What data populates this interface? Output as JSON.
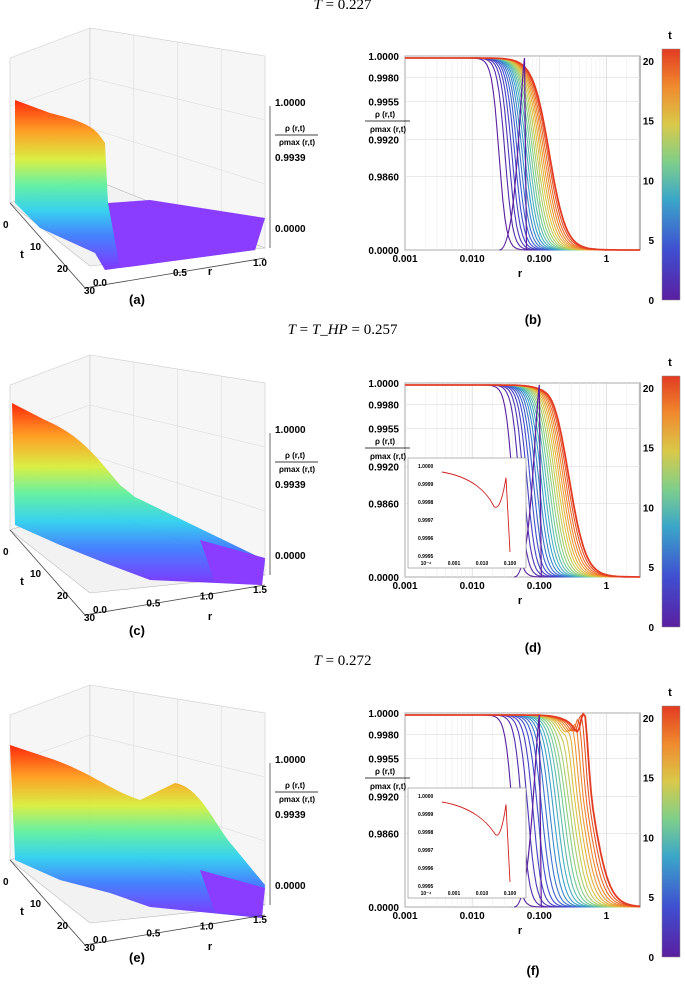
{
  "rows": [
    {
      "title_lhs": "T",
      "title_mid": "",
      "title_value": "0.227",
      "label_3d": "(a)",
      "label_2d": "(b)",
      "surface": {
        "type": "surface3d",
        "t_axis": {
          "label": "t",
          "ticks": [
            "0",
            "10",
            "20",
            "30"
          ]
        },
        "r_axis": {
          "label": "r",
          "ticks": [
            "0.0",
            "0.5",
            "1.0"
          ],
          "max": 1.0
        },
        "z_ticks": [
          "1.0000",
          "0.9939",
          "0.0000"
        ],
        "z_label_num": "ρ (r,t)",
        "z_label_den": "ρmax (r,t)",
        "shape": "single-front"
      },
      "profile": {
        "type": "line",
        "x_ticks": [
          "0.001",
          "0.010",
          "0.100",
          "1"
        ],
        "y_ticks": [
          "1.0000",
          "0.9980",
          "0.9955",
          "0.9920",
          "0.9860",
          "0.0000"
        ],
        "xlabel": "r",
        "ylabel_num": "ρ (r,t)",
        "ylabel_den": "ρmax (r,t)",
        "front_log_r_start": -1.6,
        "front_log_r_end": -0.85,
        "bump": false,
        "secondary": false,
        "inset": null,
        "colorbar": {
          "label": "t",
          "ticks": [
            "20",
            "15",
            "10",
            "5",
            "0"
          ],
          "min": 0,
          "max": 21
        }
      }
    },
    {
      "title_lhs": "T",
      "title_mid": "T_HP",
      "title_value": "0.257",
      "label_3d": "(c)",
      "label_2d": "(d)",
      "surface": {
        "type": "surface3d",
        "t_axis": {
          "label": "t",
          "ticks": [
            "0",
            "10",
            "20",
            "30"
          ]
        },
        "r_axis": {
          "label": "r",
          "ticks": [
            "0.0",
            "0.5",
            "1.0",
            "1.5"
          ],
          "max": 1.5
        },
        "z_ticks": [
          "1.0000",
          "0.9939",
          "0.0000"
        ],
        "z_label_num": "ρ (r,t)",
        "z_label_den": "ρmax (r,t)",
        "shape": "double-front"
      },
      "profile": {
        "type": "line",
        "x_ticks": [
          "0.001",
          "0.010",
          "0.100",
          "1"
        ],
        "y_ticks": [
          "1.0000",
          "0.9980",
          "0.9955",
          "0.9920",
          "0.9860",
          "0.0000"
        ],
        "xlabel": "r",
        "ylabel_num": "ρ (r,t)",
        "ylabel_den": "ρmax (r,t)",
        "front_log_r_start": -1.4,
        "front_log_r_end": -0.55,
        "bump": true,
        "secondary": true,
        "inset": {
          "y_ticks": [
            "1.0000",
            "0.9999",
            "0.9998",
            "0.9997",
            "0.9996",
            "0.9995"
          ],
          "x_ticks": [
            "10⁻⁴",
            "0.001",
            "0.010",
            "0.100"
          ],
          "peak_height": 0.55
        },
        "colorbar": {
          "label": "t",
          "ticks": [
            "20",
            "15",
            "10",
            "5",
            "0"
          ],
          "min": 0,
          "max": 21
        }
      }
    },
    {
      "title_lhs": "T",
      "title_mid": "",
      "title_value": "0.272",
      "label_3d": "(e)",
      "label_2d": "(f)",
      "surface": {
        "type": "surface3d",
        "t_axis": {
          "label": "t",
          "ticks": [
            "0",
            "10",
            "20",
            "30"
          ]
        },
        "r_axis": {
          "label": "r",
          "ticks": [
            "0.0",
            "0.5",
            "1.0",
            "1.5"
          ],
          "max": 1.5
        },
        "z_ticks": [
          "1.0000",
          "0.9939",
          "0.0000"
        ],
        "z_label_num": "ρ (r,t)",
        "z_label_den": "ρmax (r,t)",
        "shape": "peaked"
      },
      "profile": {
        "type": "line",
        "x_ticks": [
          "0.001",
          "0.010",
          "0.100",
          "1"
        ],
        "y_ticks": [
          "1.0000",
          "0.9980",
          "0.9955",
          "0.9920",
          "0.9860",
          "0.0000"
        ],
        "xlabel": "r",
        "ylabel_num": "ρ (r,t)",
        "ylabel_den": "ρmax (r,t)",
        "front_log_r_start": -1.4,
        "front_log_r_end": -0.2,
        "bump": true,
        "secondary": true,
        "peak": true,
        "inset": {
          "y_ticks": [
            "1.0000",
            "0.9999",
            "0.9998",
            "0.9997",
            "0.9996",
            "0.9995"
          ],
          "x_ticks": [
            "10⁻⁴",
            "0.001",
            "0.010",
            "0.100"
          ],
          "peak_height": 0.95
        },
        "colorbar": {
          "label": "t",
          "ticks": [
            "20",
            "15",
            "10",
            "5",
            "0"
          ],
          "min": 0,
          "max": 21
        }
      }
    }
  ]
}
